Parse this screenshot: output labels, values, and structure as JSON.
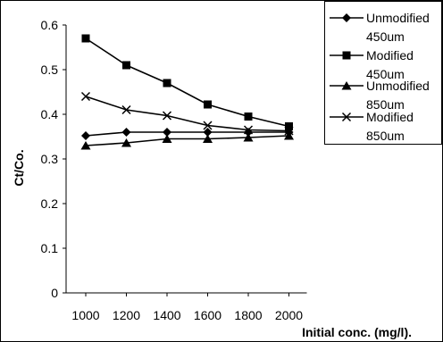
{
  "chart_data": {
    "type": "line",
    "categories": [
      "1000",
      "1200",
      "1400",
      "1600",
      "1800",
      "2000"
    ],
    "x": [
      1000,
      1200,
      1400,
      1600,
      1800,
      2000
    ],
    "xlabel": "Initial conc. (mg/l).",
    "ylabel": "Ct/Co.",
    "ylim": [
      0,
      0.6
    ],
    "yticks": [
      "0",
      "0.1",
      "0.2",
      "0.3",
      "0.4",
      "0.5",
      "0.6"
    ],
    "grid": false,
    "legend_position": "top-right",
    "series": [
      {
        "name": "Unmodified 450um",
        "label_lines": [
          "Unmodified",
          "450um"
        ],
        "marker": "diamond",
        "values": [
          0.352,
          0.36,
          0.36,
          0.36,
          0.36,
          0.36
        ]
      },
      {
        "name": "Modified 450um",
        "label_lines": [
          "Modified",
          "450um"
        ],
        "marker": "square",
        "values": [
          0.57,
          0.51,
          0.47,
          0.422,
          0.395,
          0.373
        ]
      },
      {
        "name": "Unmodified 850um",
        "label_lines": [
          "Unmodified",
          "850um"
        ],
        "marker": "triangle",
        "values": [
          0.33,
          0.336,
          0.345,
          0.345,
          0.348,
          0.352
        ]
      },
      {
        "name": "Modified 850um",
        "label_lines": [
          "Modified",
          "850um"
        ],
        "marker": "x",
        "values": [
          0.44,
          0.41,
          0.397,
          0.375,
          0.365,
          0.363
        ]
      }
    ]
  }
}
